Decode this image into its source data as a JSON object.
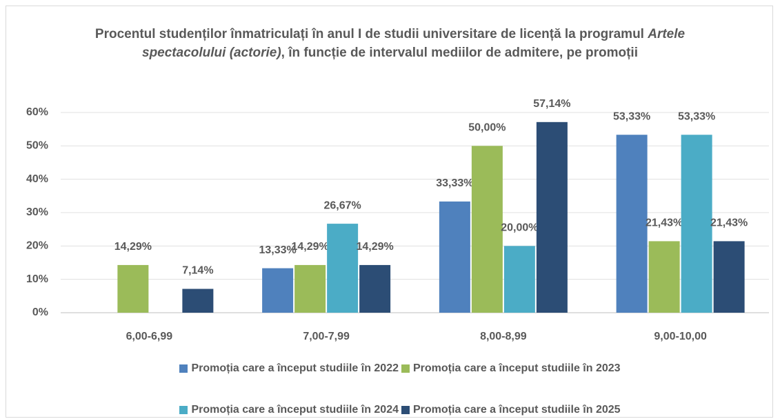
{
  "chart_data": {
    "type": "bar",
    "title": [
      "Procentul studenților înmatriculați în anul I de studii universitare de licență la programul ",
      "Artele spectacolului (actorie)",
      ", în funcție de intervalul mediilor de admitere, pe promoții"
    ],
    "categories": [
      "6,00-6,99",
      "7,00-7,99",
      "8,00-8,99",
      "9,00-10,00"
    ],
    "series": [
      {
        "name": "Promoția care a început studiile în 2022",
        "color": "#4f81bd",
        "values": [
          null,
          13.33,
          33.33,
          53.33
        ],
        "value_labels": [
          null,
          "13,33%",
          "33,33%",
          "53,33%"
        ]
      },
      {
        "name": "Promoția care a început studiile în 2023",
        "color": "#9bbb59",
        "values": [
          14.29,
          14.29,
          50,
          21.43
        ],
        "value_labels": [
          "14,29%",
          "14,29%",
          "50,00%",
          "21,43%"
        ]
      },
      {
        "name": "Promoția care a început studiile în 2024",
        "color": "#4bacc6",
        "values": [
          null,
          26.67,
          20,
          53.33
        ],
        "value_labels": [
          null,
          "26,67%",
          "20,00%",
          "53,33%"
        ]
      },
      {
        "name": "Promoția care a început studiile în 2025",
        "color": "#2c4d75",
        "values": [
          7.14,
          14.29,
          57.14,
          21.43
        ],
        "value_labels": [
          "7,14%",
          "14,29%",
          "57,14%",
          "21,43%"
        ]
      }
    ],
    "ylim": [
      0,
      60
    ],
    "yticks": [
      {
        "value": 0,
        "label": "0%"
      },
      {
        "value": 10,
        "label": "10%"
      },
      {
        "value": 20,
        "label": "20%"
      },
      {
        "value": 30,
        "label": "30%"
      },
      {
        "value": 40,
        "label": "40%"
      },
      {
        "value": 50,
        "label": "50%"
      },
      {
        "value": 60,
        "label": "60%"
      }
    ],
    "grid": true,
    "legend": "bottom"
  }
}
